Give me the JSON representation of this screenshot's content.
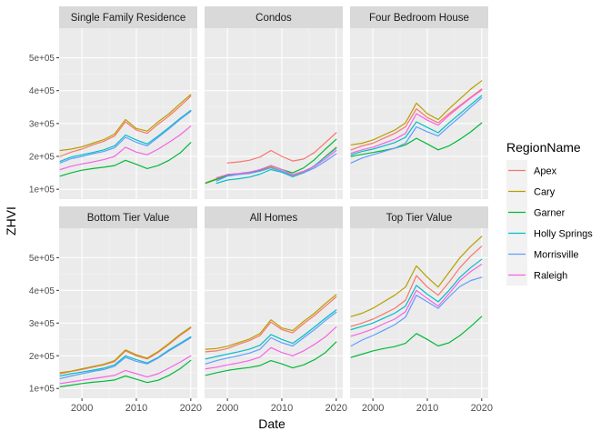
{
  "chart_data": {
    "type": "line",
    "xlabel": "Date",
    "ylabel": "ZHVI",
    "xlim": [
      1995.8,
      2021.2
    ],
    "ylim": [
      70000,
      590000
    ],
    "x_ticks": [
      2000,
      2010,
      2020
    ],
    "x_tick_labels": [
      "2000",
      "2010",
      "2020"
    ],
    "y_ticks": [
      100000,
      200000,
      300000,
      400000,
      500000
    ],
    "y_tick_labels": [
      "1e+05",
      "2e+05",
      "3e+05",
      "4e+05",
      "5e+05"
    ],
    "grid": true,
    "legend": {
      "title": "RegionName",
      "placement": "right",
      "entries": [
        "Apex",
        "Cary",
        "Garner",
        "Holly Springs",
        "Morrisville",
        "Raleigh"
      ]
    },
    "series_colors": {
      "Apex": "#F8766D",
      "Cary": "#B79F00",
      "Garner": "#00BA38",
      "Holly Springs": "#00BFC4",
      "Morrisville": "#619CFF",
      "Raleigh": "#F564E3"
    },
    "x": [
      1996,
      1998,
      2000,
      2002,
      2004,
      2006,
      2008,
      2010,
      2012,
      2014,
      2016,
      2018,
      2020
    ],
    "panels": [
      {
        "title": "Single Family Residence",
        "series": [
          {
            "name": "Apex",
            "values": [
              200000,
              213000,
              222000,
              235000,
              246000,
              262000,
              305000,
              280000,
              270000,
              298000,
              323000,
              352000,
              383000
            ]
          },
          {
            "name": "Cary",
            "values": [
              218000,
              222000,
              229000,
              240000,
              251000,
              268000,
              312000,
              285000,
              277000,
              305000,
              330000,
              360000,
              388000
            ]
          },
          {
            "name": "Garner",
            "values": [
              140000,
              150000,
              158000,
              163000,
              167000,
              172000,
              188000,
              176000,
              163000,
              172000,
              188000,
              210000,
              242000
            ]
          },
          {
            "name": "Holly Springs",
            "values": [
              185000,
              198000,
              205000,
              212000,
              220000,
              232000,
              265000,
              250000,
              238000,
              262000,
              288000,
              315000,
              340000
            ]
          },
          {
            "name": "Morrisville",
            "values": [
              180000,
              193000,
              200000,
              208000,
              215000,
              226000,
              258000,
              243000,
              232000,
              258000,
              284000,
              312000,
              337000
            ]
          },
          {
            "name": "Raleigh",
            "values": [
              160000,
              170000,
              177000,
              183000,
              190000,
              200000,
              228000,
              213000,
              205000,
              222000,
              243000,
              265000,
              292000
            ]
          }
        ]
      },
      {
        "title": "Condos",
        "series": [
          {
            "name": "Apex",
            "values": [
              null,
              null,
              180000,
              183000,
              188000,
              198000,
              218000,
              200000,
              186000,
              192000,
              212000,
              242000,
              272000
            ]
          },
          {
            "name": "Cary",
            "values": [
              120000,
              132000,
              145000,
              148000,
              152000,
              158000,
              168000,
              155000,
              143000,
              152000,
              170000,
              200000,
              228000
            ]
          },
          {
            "name": "Garner",
            "values": [
              118000,
              130000,
              142000,
              146000,
              150000,
              158000,
              172000,
              160000,
              150000,
              165000,
              190000,
              222000,
              252000
            ]
          },
          {
            "name": "Holly Springs",
            "values": [
              null,
              118000,
              128000,
              132000,
              137000,
              146000,
              160000,
              152000,
              138000,
              150000,
              172000,
              198000,
              225000
            ]
          },
          {
            "name": "Morrisville",
            "values": [
              null,
              125000,
              140000,
              145000,
              148000,
              155000,
              165000,
              155000,
              140000,
              150000,
              165000,
              185000,
              208000
            ]
          },
          {
            "name": "Raleigh",
            "values": [
              null,
              135000,
              145000,
              148000,
              152000,
              160000,
              172000,
              160000,
              145000,
              155000,
              170000,
              192000,
              218000
            ]
          }
        ]
      },
      {
        "title": "Four Bedroom House",
        "series": [
          {
            "name": "Apex",
            "values": [
              220000,
              232000,
              240000,
              255000,
              270000,
              290000,
              345000,
              318000,
              302000,
              330000,
              355000,
              380000,
              405000
            ]
          },
          {
            "name": "Cary",
            "values": [
              235000,
              240000,
              250000,
              265000,
              280000,
              302000,
              362000,
              330000,
              312000,
              345000,
              375000,
              405000,
              430000
            ]
          },
          {
            "name": "Garner",
            "values": [
              200000,
              206000,
              212000,
              218000,
              225000,
              235000,
              255000,
              238000,
              220000,
              232000,
              252000,
              275000,
              302000
            ]
          },
          {
            "name": "Holly Springs",
            "values": [
              205000,
              215000,
              222000,
              232000,
              242000,
              258000,
              305000,
              288000,
              272000,
              302000,
              330000,
              358000,
              385000
            ]
          },
          {
            "name": "Morrisville",
            "values": [
              180000,
              195000,
              205000,
              215000,
              225000,
              240000,
              290000,
              275000,
              262000,
              292000,
              320000,
              350000,
              378000
            ]
          },
          {
            "name": "Raleigh",
            "values": [
              210000,
              220000,
              228000,
              240000,
              252000,
              270000,
              330000,
              310000,
              295000,
              325000,
              352000,
              378000,
              402000
            ]
          }
        ]
      },
      {
        "title": "Bottom Tier Value",
        "series": [
          {
            "name": "Apex",
            "values": [
              145000,
              152000,
              158000,
              165000,
              172000,
              182000,
              215000,
              200000,
              190000,
              210000,
              235000,
              262000,
              285000
            ]
          },
          {
            "name": "Cary",
            "values": [
              148000,
              153000,
              160000,
              167000,
              174000,
              185000,
              218000,
              203000,
              193000,
              213000,
              238000,
              265000,
              288000
            ]
          },
          {
            "name": "Garner",
            "values": [
              105000,
              110000,
              115000,
              119000,
              122000,
              126000,
              138000,
              128000,
              118000,
              125000,
              140000,
              160000,
              186000
            ]
          },
          {
            "name": "Holly Springs",
            "values": [
              138000,
              145000,
              150000,
              156000,
              162000,
              172000,
              200000,
              188000,
              178000,
              195000,
              218000,
              238000,
              258000
            ]
          },
          {
            "name": "Morrisville",
            "values": [
              130000,
              138000,
              145000,
              152000,
              158000,
              168000,
              195000,
              183000,
              175000,
              193000,
              215000,
              235000,
              255000
            ]
          },
          {
            "name": "Raleigh",
            "values": [
              115000,
              120000,
              125000,
              130000,
              135000,
              140000,
              155000,
              145000,
              135000,
              145000,
              162000,
              180000,
              200000
            ]
          }
        ]
      },
      {
        "title": "All Homes",
        "series": [
          {
            "name": "Apex",
            "values": [
              212000,
              215000,
              222000,
              235000,
              246000,
              262000,
              303000,
              280000,
              270000,
              298000,
              323000,
              352000,
              380000
            ]
          },
          {
            "name": "Cary",
            "values": [
              220000,
              222000,
              229000,
              240000,
              251000,
              268000,
              310000,
              285000,
              277000,
              305000,
              330000,
              360000,
              387000
            ]
          },
          {
            "name": "Garner",
            "values": [
              140000,
              148000,
              155000,
              160000,
              164000,
              170000,
              185000,
              175000,
              163000,
              172000,
              188000,
              210000,
              242000
            ]
          },
          {
            "name": "Holly Springs",
            "values": [
              190000,
              198000,
              205000,
              212000,
              220000,
              232000,
              265000,
              250000,
              238000,
              262000,
              288000,
              315000,
              340000
            ]
          },
          {
            "name": "Morrisville",
            "values": [
              175000,
              185000,
              193000,
              200000,
              208000,
              220000,
              255000,
              240000,
              230000,
              255000,
              280000,
              308000,
              333000
            ]
          },
          {
            "name": "Raleigh",
            "values": [
              160000,
              165000,
              172000,
              178000,
              185000,
              196000,
              225000,
              210000,
              200000,
              215000,
              235000,
              258000,
              288000
            ]
          }
        ]
      },
      {
        "title": "Top Tier Value",
        "series": [
          {
            "name": "Apex",
            "values": [
              290000,
              300000,
              312000,
              328000,
              345000,
              370000,
              445000,
              410000,
              385000,
              425000,
              470000,
              505000,
              535000
            ]
          },
          {
            "name": "Cary",
            "values": [
              320000,
              330000,
              345000,
              365000,
              385000,
              410000,
              475000,
              440000,
              410000,
              455000,
              500000,
              535000,
              565000
            ]
          },
          {
            "name": "Garner",
            "values": [
              195000,
              205000,
              215000,
              222000,
              228000,
              238000,
              268000,
              250000,
              230000,
              240000,
              262000,
              290000,
              320000
            ]
          },
          {
            "name": "Holly Springs",
            "values": [
              280000,
              290000,
              300000,
              315000,
              330000,
              352000,
              415000,
              388000,
              365000,
              400000,
              440000,
              470000,
              495000
            ]
          },
          {
            "name": "Morrisville",
            "values": [
              230000,
              248000,
              262000,
              278000,
              295000,
              318000,
              385000,
              365000,
              345000,
              380000,
              412000,
              430000,
              440000
            ]
          },
          {
            "name": "Raleigh",
            "values": [
              260000,
              270000,
              282000,
              298000,
              312000,
              335000,
              400000,
              375000,
              352000,
              390000,
              430000,
              458000,
              480000
            ]
          }
        ]
      }
    ]
  }
}
